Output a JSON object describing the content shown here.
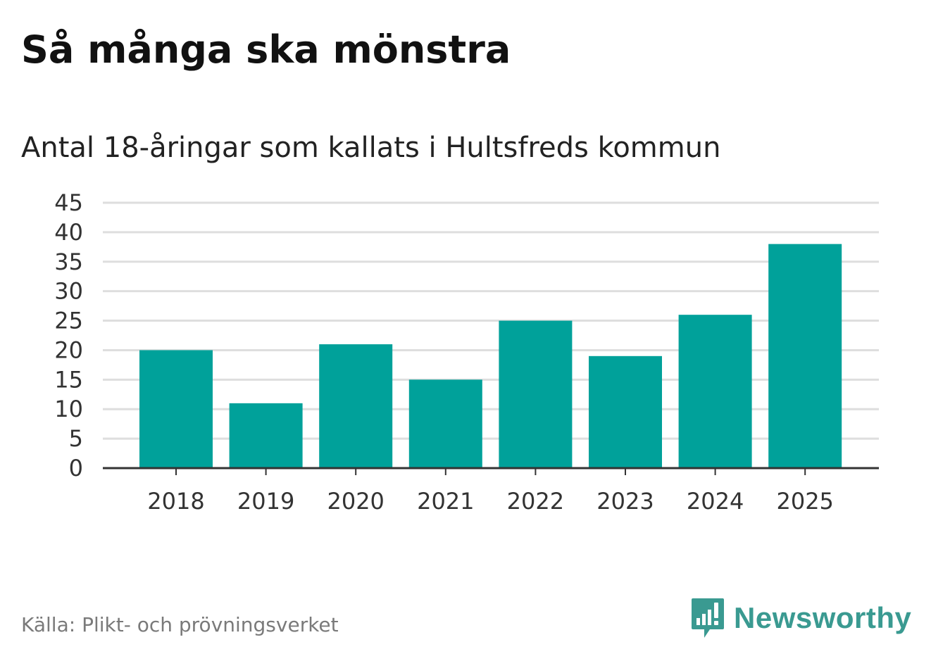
{
  "title": "Så många ska mönstra",
  "subtitle": "Antal 18-åringar som kallats i Hultsfreds kommun",
  "source": "Källa: Plikt- och prövningsverket",
  "brand": {
    "name": "Newsworthy",
    "color": "#3a9a91",
    "icon": "newsworthy-logo-icon"
  },
  "colors": {
    "bar": "#00a19a",
    "grid": "#dedede",
    "axis": "#333333"
  },
  "chart_data": {
    "type": "bar",
    "categories": [
      "2018",
      "2019",
      "2020",
      "2021",
      "2022",
      "2023",
      "2024",
      "2025"
    ],
    "values": [
      20,
      11,
      21,
      15,
      25,
      19,
      26,
      38
    ],
    "title": "Så många ska mönstra",
    "subtitle": "Antal 18-åringar som kallats i Hultsfreds kommun",
    "xlabel": "",
    "ylabel": "",
    "ylim": [
      0,
      45
    ],
    "yticks": [
      0,
      5,
      10,
      15,
      20,
      25,
      30,
      35,
      40,
      45
    ],
    "grid": true,
    "legend": "none"
  }
}
